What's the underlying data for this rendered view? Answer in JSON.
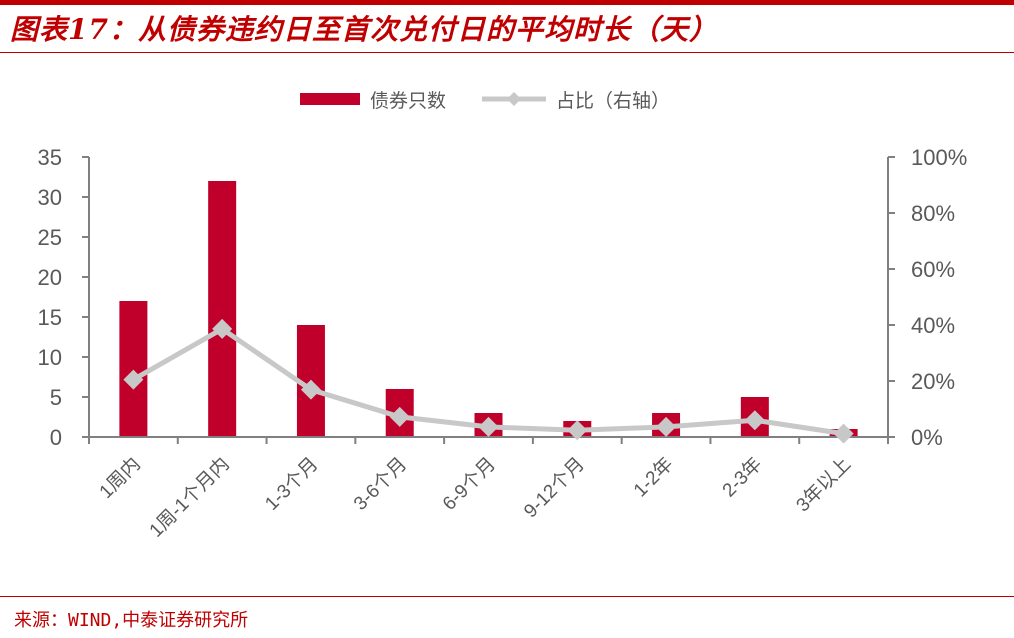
{
  "header": {
    "title": "图表17：从债券违约日至首次兑付日的平均时长（天）"
  },
  "legend": {
    "bar_label": "债券只数",
    "line_label": "占比（右轴）"
  },
  "colors": {
    "accent": "#c00000",
    "bar": "#c0002a",
    "line": "#c8c8c8",
    "axis": "#808080",
    "text": "#595959"
  },
  "footer": {
    "source": "来源：WIND,中泰证券研究所"
  },
  "chart_data": {
    "type": "bar",
    "title": "图表17：从债券违约日至首次兑付日的平均时长（天）",
    "categories": [
      "1周内",
      "1周-1个月内",
      "1-3个月",
      "3-6个月",
      "6-9个月",
      "9-12个月",
      "1-2年",
      "2-3年",
      "3年以上"
    ],
    "series": [
      {
        "name": "债券只数",
        "type": "bar",
        "axis": "left",
        "values": [
          17,
          32,
          14,
          6,
          3,
          2,
          3,
          5,
          1
        ]
      },
      {
        "name": "占比（右轴）",
        "type": "line",
        "axis": "right",
        "values": [
          0.205,
          0.386,
          0.169,
          0.072,
          0.036,
          0.024,
          0.036,
          0.06,
          0.012
        ]
      }
    ],
    "left_axis": {
      "ylim": [
        0,
        35
      ],
      "ticks": [
        "0",
        "5",
        "10",
        "15",
        "20",
        "25",
        "30",
        "35"
      ]
    },
    "right_axis": {
      "ylim": [
        0,
        1
      ],
      "ticks": [
        "0%",
        "20%",
        "40%",
        "60%",
        "80%",
        "100%"
      ]
    },
    "xlabel": "",
    "ylabel": "",
    "grid": false,
    "legend_position": "top"
  }
}
